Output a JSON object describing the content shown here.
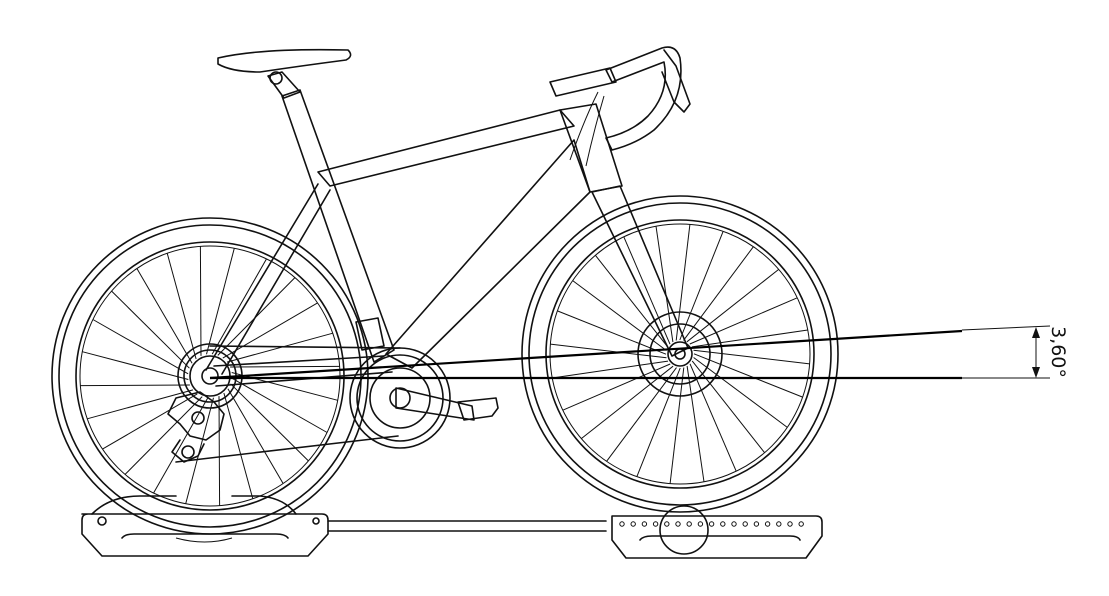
{
  "dimension": {
    "angle_label": "3,60°"
  },
  "colors": {
    "line": "#111111",
    "background": "#ffffff"
  }
}
